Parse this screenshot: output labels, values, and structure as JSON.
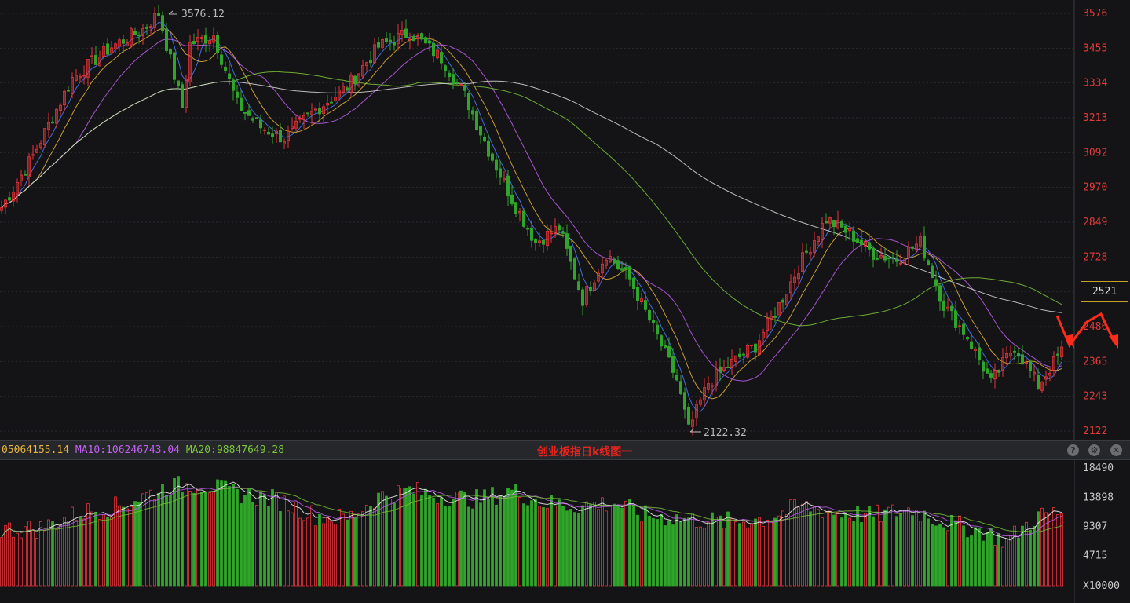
{
  "colors": {
    "background": "#141416",
    "up": "#e8323a",
    "down": "#2fa52a",
    "axis_text": "#e03a3a",
    "vol_axis_text": "#c8c8c8",
    "grid": "#2a2b30",
    "ma5": "#ffffff",
    "ma10": "#e8b43a",
    "ma20": "#c060f0",
    "ma60": "#7cc43a",
    "ma120": "#d8d8d8",
    "ma_blue": "#4a7cff",
    "annotation": "#ff2a1a"
  },
  "chart_data": [
    {
      "type": "candlestick",
      "title": "创业板指日k线图一",
      "y_ticks": [
        "3576",
        "3455",
        "3334",
        "3213",
        "3092",
        "2970",
        "2849",
        "2728",
        "2607",
        "2486",
        "2365",
        "2243",
        "2122"
      ],
      "ylim": [
        2122,
        3576
      ],
      "high_label": "3576.12",
      "low_label": "2122.32",
      "current_price": "2521",
      "key_points": [
        {
          "i": 0,
          "v": 2900
        },
        {
          "i": 8,
          "v": 3080
        },
        {
          "i": 18,
          "v": 3350
        },
        {
          "i": 28,
          "v": 3460
        },
        {
          "i": 36,
          "v": 3520
        },
        {
          "i": 40,
          "v": 3576
        },
        {
          "i": 46,
          "v": 3250
        },
        {
          "i": 48,
          "v": 3470
        },
        {
          "i": 54,
          "v": 3500
        },
        {
          "i": 60,
          "v": 3260
        },
        {
          "i": 66,
          "v": 3180
        },
        {
          "i": 72,
          "v": 3140
        },
        {
          "i": 80,
          "v": 3240
        },
        {
          "i": 88,
          "v": 3320
        },
        {
          "i": 96,
          "v": 3460
        },
        {
          "i": 104,
          "v": 3510
        },
        {
          "i": 112,
          "v": 3420
        },
        {
          "i": 118,
          "v": 3290
        },
        {
          "i": 124,
          "v": 3100
        },
        {
          "i": 130,
          "v": 2930
        },
        {
          "i": 136,
          "v": 2780
        },
        {
          "i": 142,
          "v": 2830
        },
        {
          "i": 148,
          "v": 2580
        },
        {
          "i": 154,
          "v": 2740
        },
        {
          "i": 160,
          "v": 2650
        },
        {
          "i": 166,
          "v": 2480
        },
        {
          "i": 172,
          "v": 2300
        },
        {
          "i": 175,
          "v": 2125
        },
        {
          "i": 180,
          "v": 2290
        },
        {
          "i": 186,
          "v": 2360
        },
        {
          "i": 192,
          "v": 2420
        },
        {
          "i": 198,
          "v": 2560
        },
        {
          "i": 204,
          "v": 2720
        },
        {
          "i": 210,
          "v": 2860
        },
        {
          "i": 216,
          "v": 2810
        },
        {
          "i": 222,
          "v": 2740
        },
        {
          "i": 228,
          "v": 2720
        },
        {
          "i": 234,
          "v": 2780
        },
        {
          "i": 240,
          "v": 2560
        },
        {
          "i": 246,
          "v": 2450
        },
        {
          "i": 252,
          "v": 2290
        },
        {
          "i": 258,
          "v": 2420
        },
        {
          "i": 264,
          "v": 2280
        },
        {
          "i": 270,
          "v": 2400
        }
      ]
    },
    {
      "type": "bar",
      "title": "",
      "y_ticks": [
        "18490",
        "13898",
        "9307",
        "4715"
      ],
      "unit_label": "X10000",
      "ylim": [
        0,
        18490
      ],
      "ma_readout": [
        {
          "label": "05064155.14",
          "color": "#e8b43a"
        },
        {
          "label": "MA10:106246743.04",
          "color": "#c060f0"
        },
        {
          "label": "MA20:98847649.28",
          "color": "#7cc43a"
        }
      ],
      "key_points": [
        {
          "i": 0,
          "v": 8800
        },
        {
          "i": 10,
          "v": 9000
        },
        {
          "i": 20,
          "v": 11500
        },
        {
          "i": 30,
          "v": 12500
        },
        {
          "i": 42,
          "v": 15500
        },
        {
          "i": 50,
          "v": 16000
        },
        {
          "i": 60,
          "v": 14500
        },
        {
          "i": 70,
          "v": 13500
        },
        {
          "i": 80,
          "v": 11000
        },
        {
          "i": 88,
          "v": 10500
        },
        {
          "i": 96,
          "v": 14000
        },
        {
          "i": 104,
          "v": 15000
        },
        {
          "i": 112,
          "v": 14000
        },
        {
          "i": 122,
          "v": 13500
        },
        {
          "i": 130,
          "v": 15000
        },
        {
          "i": 138,
          "v": 13000
        },
        {
          "i": 146,
          "v": 12500
        },
        {
          "i": 156,
          "v": 13000
        },
        {
          "i": 164,
          "v": 11000
        },
        {
          "i": 174,
          "v": 10500
        },
        {
          "i": 184,
          "v": 10000
        },
        {
          "i": 194,
          "v": 10500
        },
        {
          "i": 204,
          "v": 12500
        },
        {
          "i": 212,
          "v": 11500
        },
        {
          "i": 222,
          "v": 11000
        },
        {
          "i": 232,
          "v": 12000
        },
        {
          "i": 240,
          "v": 10000
        },
        {
          "i": 250,
          "v": 8500
        },
        {
          "i": 256,
          "v": 7000
        },
        {
          "i": 264,
          "v": 11000
        },
        {
          "i": 270,
          "v": 11500
        }
      ]
    }
  ],
  "toolbar": {
    "help_icon": "?",
    "settings_icon": "⚙",
    "close_icon": "✕"
  }
}
